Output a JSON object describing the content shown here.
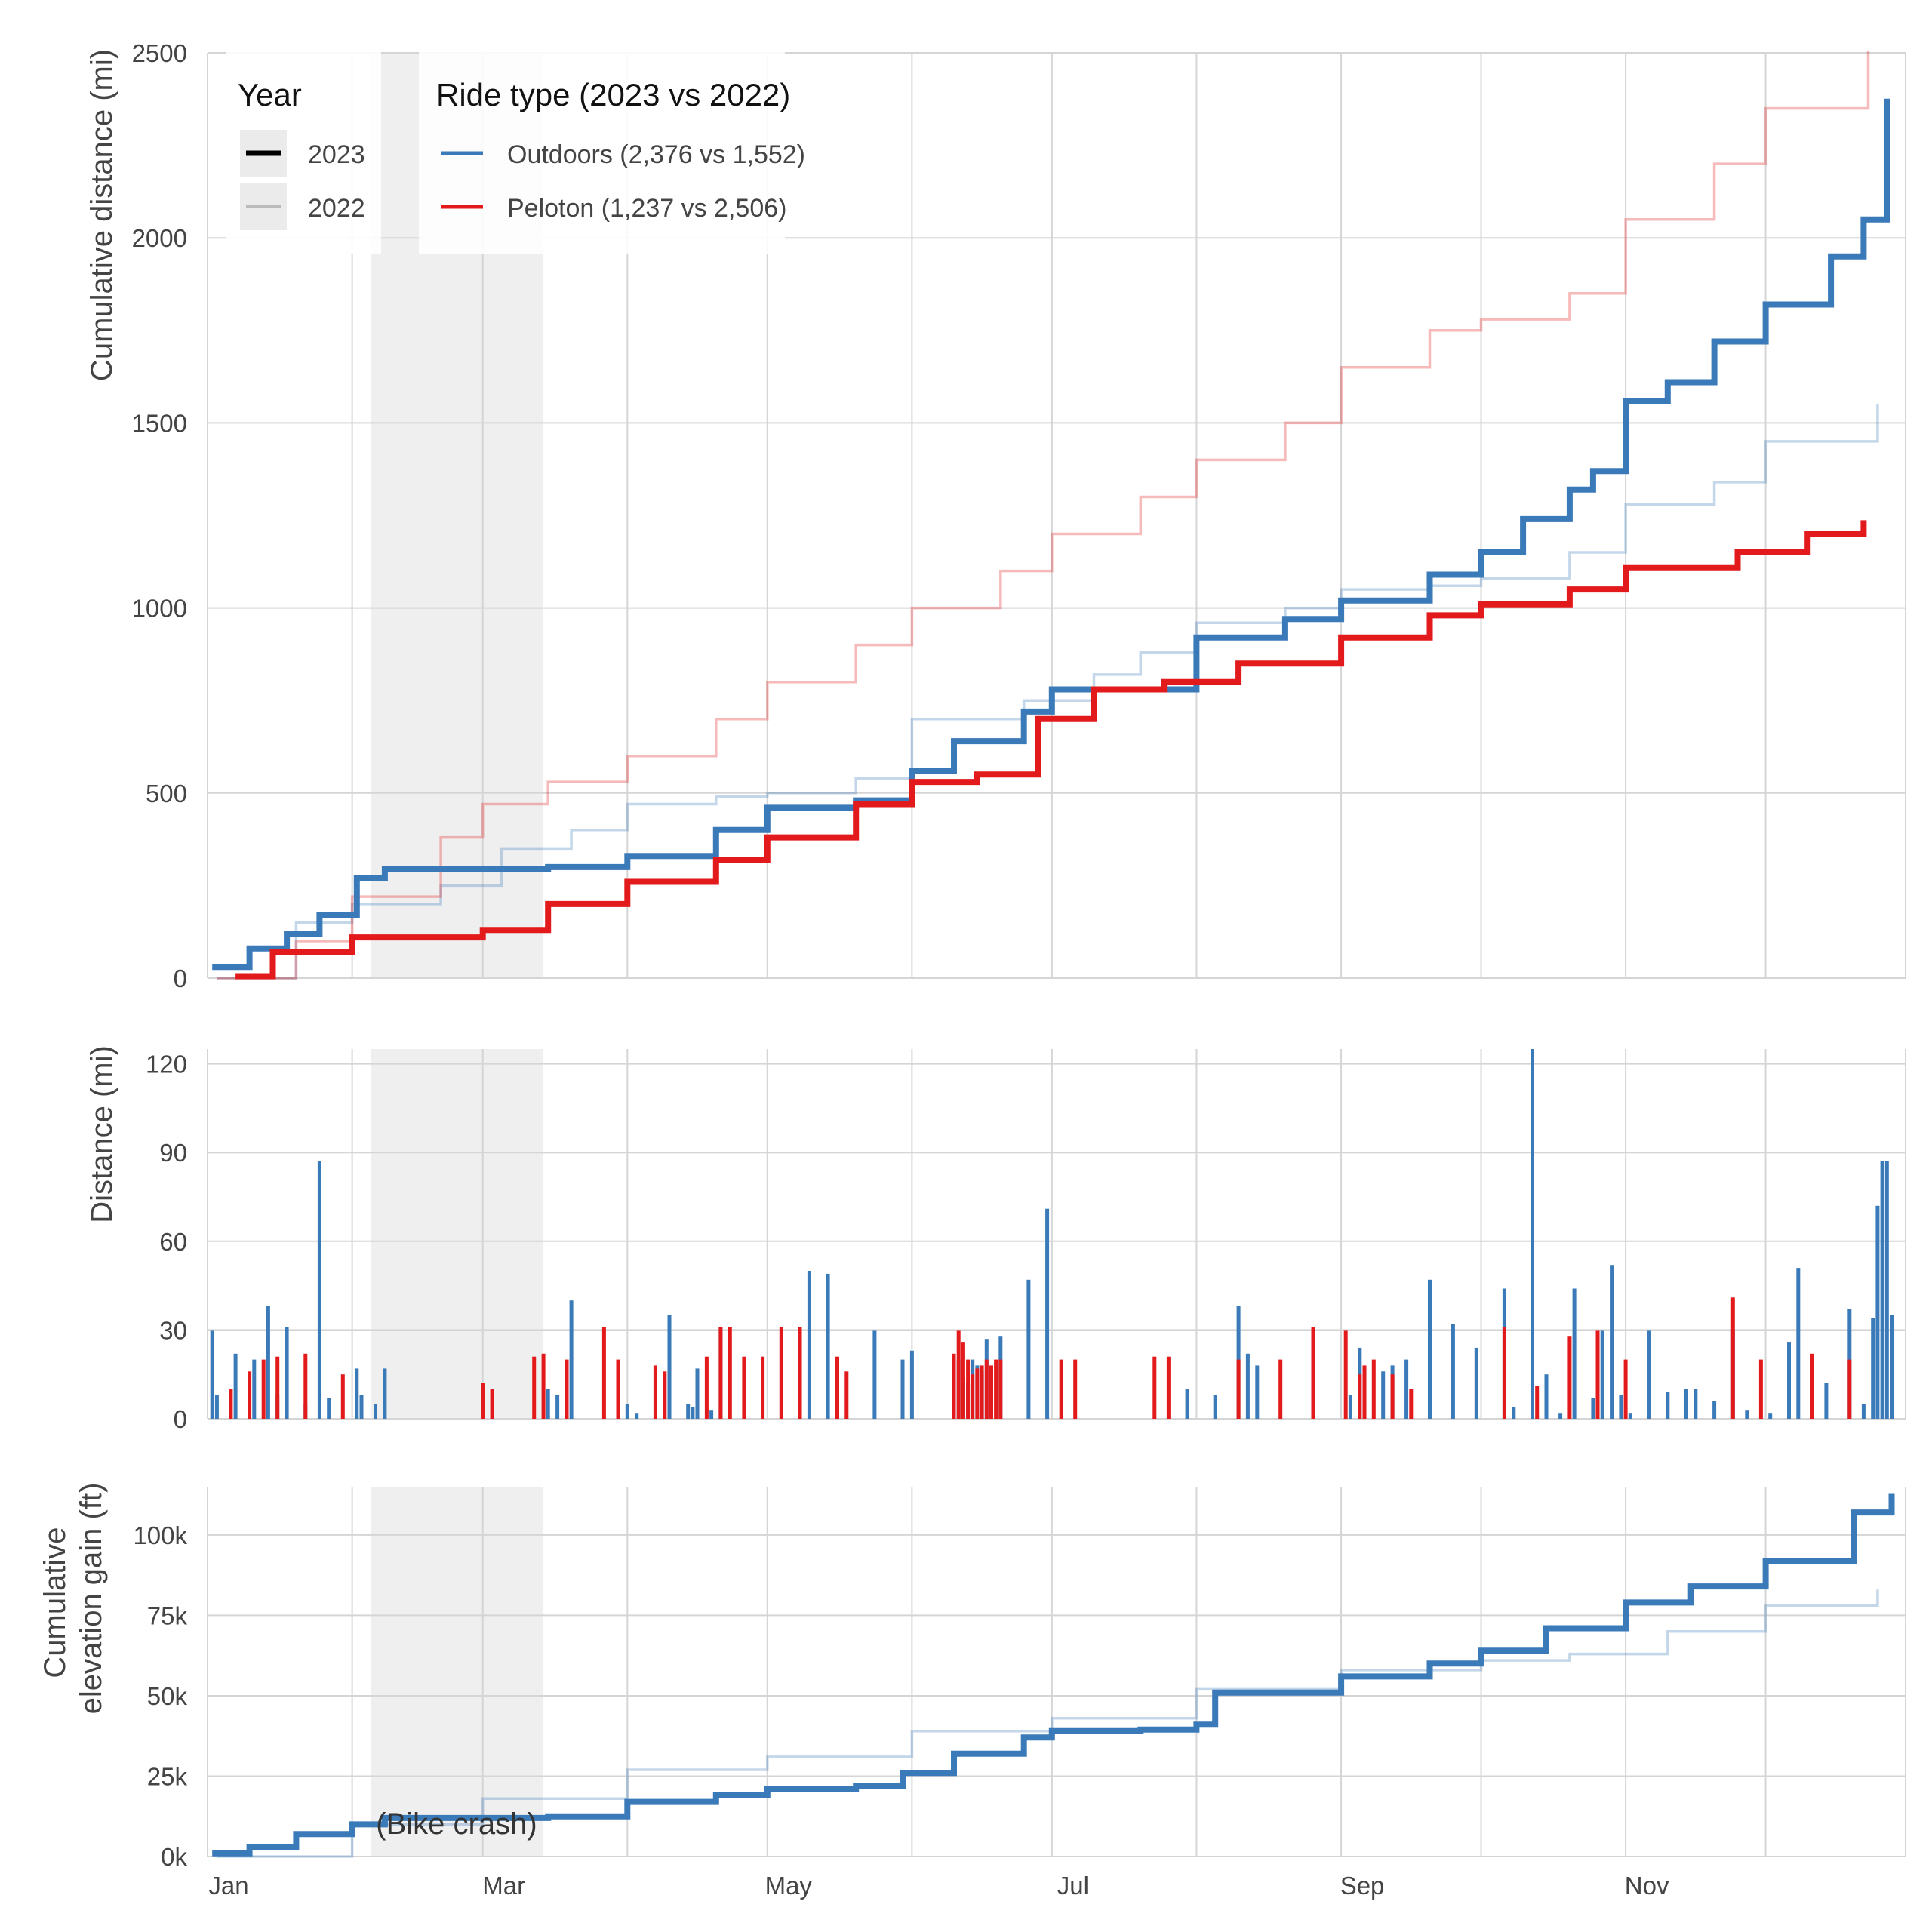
{
  "colors": {
    "outdoors": "#3a7ab8",
    "peloton": "#e31a1c",
    "grid": "#d5d5d5",
    "shade": "#efefef"
  },
  "legend": {
    "year_title": "Year",
    "year_items": [
      "2023",
      "2022"
    ],
    "type_title": "Ride type (2023 vs 2022)",
    "type_items": [
      "Outdoors (2,376 vs 1,552)",
      "Peloton (1,237 vs 2,506)"
    ]
  },
  "annotation": "(Bike crash)",
  "chart_data": [
    {
      "type": "line",
      "panel": "cumulative_distance",
      "ylabel": "Cumulative distance (mi)",
      "ylim": [
        0,
        2500
      ],
      "yticks": [
        0,
        500,
        1000,
        1500,
        2000,
        2500
      ],
      "x_ticks": [
        {
          "date": "2023-01-01",
          "label": "Jan"
        },
        {
          "date": "2023-03-01",
          "label": "Mar"
        },
        {
          "date": "2023-05-01",
          "label": "May"
        },
        {
          "date": "2023-07-01",
          "label": "Jul"
        },
        {
          "date": "2023-09-01",
          "label": "Sep"
        },
        {
          "date": "2023-11-01",
          "label": "Nov"
        }
      ],
      "shaded_range": [
        "2023-02-05",
        "2023-03-14"
      ],
      "series": [
        {
          "name": "Outdoors",
          "year": "2022",
          "x": [
            "2023-01-03",
            "2023-01-20",
            "2023-02-01",
            "2023-02-20",
            "2023-03-05",
            "2023-03-20",
            "2023-04-01",
            "2023-04-20",
            "2023-05-01",
            "2023-05-20",
            "2023-06-01",
            "2023-06-25",
            "2023-07-10",
            "2023-07-20",
            "2023-08-01",
            "2023-08-20",
            "2023-09-01",
            "2023-09-20",
            "2023-10-01",
            "2023-10-20",
            "2023-11-01",
            "2023-11-20",
            "2023-12-01",
            "2023-12-25"
          ],
          "values": [
            0,
            150,
            200,
            250,
            350,
            400,
            470,
            490,
            500,
            540,
            700,
            750,
            820,
            880,
            960,
            1000,
            1050,
            1060,
            1080,
            1150,
            1280,
            1340,
            1450,
            1552
          ]
        },
        {
          "name": "Peloton",
          "year": "2022",
          "x": [
            "2023-01-03",
            "2023-01-20",
            "2023-02-01",
            "2023-02-20",
            "2023-03-01",
            "2023-03-15",
            "2023-04-01",
            "2023-04-20",
            "2023-05-01",
            "2023-05-20",
            "2023-06-01",
            "2023-06-20",
            "2023-07-01",
            "2023-07-20",
            "2023-08-01",
            "2023-08-20",
            "2023-09-01",
            "2023-09-20",
            "2023-10-01",
            "2023-10-20",
            "2023-11-01",
            "2023-11-20",
            "2023-12-01",
            "2023-12-23"
          ],
          "values": [
            0,
            100,
            220,
            380,
            470,
            530,
            600,
            700,
            800,
            900,
            1000,
            1100,
            1200,
            1300,
            1400,
            1500,
            1650,
            1750,
            1780,
            1850,
            2050,
            2200,
            2350,
            2506
          ]
        },
        {
          "name": "Outdoors",
          "year": "2023",
          "x": [
            "2023-01-02",
            "2023-01-10",
            "2023-01-18",
            "2023-01-25",
            "2023-02-02",
            "2023-02-08",
            "2023-03-15",
            "2023-04-01",
            "2023-04-20",
            "2023-05-01",
            "2023-05-20",
            "2023-06-01",
            "2023-06-10",
            "2023-06-25",
            "2023-07-01",
            "2023-07-20",
            "2023-08-01",
            "2023-08-20",
            "2023-09-01",
            "2023-09-20",
            "2023-10-01",
            "2023-10-10",
            "2023-10-20",
            "2023-10-25",
            "2023-11-01",
            "2023-11-10",
            "2023-11-20",
            "2023-12-01",
            "2023-12-15",
            "2023-12-22",
            "2023-12-27"
          ],
          "values": [
            30,
            80,
            120,
            170,
            270,
            295,
            300,
            330,
            400,
            460,
            480,
            560,
            640,
            720,
            780,
            780,
            920,
            970,
            1020,
            1090,
            1150,
            1240,
            1320,
            1370,
            1560,
            1610,
            1720,
            1820,
            1950,
            2050,
            2376
          ]
        },
        {
          "name": "Peloton",
          "year": "2023",
          "x": [
            "2023-01-07",
            "2023-01-15",
            "2023-02-01",
            "2023-02-10",
            "2023-03-01",
            "2023-03-15",
            "2023-04-01",
            "2023-04-20",
            "2023-05-01",
            "2023-05-20",
            "2023-06-01",
            "2023-06-15",
            "2023-06-28",
            "2023-07-10",
            "2023-07-25",
            "2023-08-10",
            "2023-09-01",
            "2023-09-20",
            "2023-10-01",
            "2023-10-20",
            "2023-11-01",
            "2023-11-25",
            "2023-12-10",
            "2023-12-22"
          ],
          "values": [
            5,
            70,
            110,
            110,
            130,
            200,
            260,
            320,
            380,
            470,
            530,
            550,
            700,
            780,
            800,
            850,
            920,
            980,
            1010,
            1050,
            1110,
            1150,
            1200,
            1237
          ]
        }
      ]
    },
    {
      "type": "bar",
      "panel": "daily_distance",
      "ylabel": "Distance (mi)",
      "ylim": [
        0,
        125
      ],
      "yticks": [
        0,
        30,
        60,
        90,
        120
      ],
      "shaded_range": [
        "2023-02-05",
        "2023-03-14"
      ],
      "series": [
        {
          "name": "Outdoors",
          "x": [
            "2023-01-02",
            "2023-01-03",
            "2023-01-07",
            "2023-01-11",
            "2023-01-14",
            "2023-01-16",
            "2023-01-18",
            "2023-01-22",
            "2023-01-25",
            "2023-01-27",
            "2023-02-02",
            "2023-02-03",
            "2023-02-06",
            "2023-02-08",
            "2023-03-15",
            "2023-03-17",
            "2023-03-20",
            "2023-04-01",
            "2023-04-03",
            "2023-04-10",
            "2023-04-14",
            "2023-04-15",
            "2023-04-16",
            "2023-04-19",
            "2023-04-21",
            "2023-05-10",
            "2023-05-14",
            "2023-05-16",
            "2023-05-24",
            "2023-05-30",
            "2023-06-01",
            "2023-06-10",
            "2023-06-11",
            "2023-06-12",
            "2023-06-13",
            "2023-06-14",
            "2023-06-15",
            "2023-06-16",
            "2023-06-17",
            "2023-06-18",
            "2023-06-20",
            "2023-06-26",
            "2023-06-30",
            "2023-07-30",
            "2023-08-05",
            "2023-08-10",
            "2023-08-12",
            "2023-08-14",
            "2023-09-03",
            "2023-09-05",
            "2023-09-10",
            "2023-09-12",
            "2023-09-15",
            "2023-09-20",
            "2023-09-25",
            "2023-09-30",
            "2023-10-06",
            "2023-10-08",
            "2023-10-12",
            "2023-10-15",
            "2023-10-18",
            "2023-10-21",
            "2023-10-25",
            "2023-10-27",
            "2023-10-29",
            "2023-10-31",
            "2023-11-02",
            "2023-11-06",
            "2023-11-10",
            "2023-11-14",
            "2023-11-16",
            "2023-11-20",
            "2023-11-24",
            "2023-11-27",
            "2023-12-02",
            "2023-12-06",
            "2023-12-08",
            "2023-12-11",
            "2023-12-14",
            "2023-12-19",
            "2023-12-22",
            "2023-12-24",
            "2023-12-25",
            "2023-12-26",
            "2023-12-27",
            "2023-12-28"
          ],
          "values": [
            30,
            8,
            22,
            20,
            38,
            8,
            31,
            5,
            87,
            7,
            17,
            8,
            5,
            17,
            10,
            8,
            40,
            5,
            2,
            35,
            5,
            4,
            17,
            3,
            31,
            50,
            49,
            5,
            30,
            20,
            23,
            19,
            20,
            14,
            12,
            20,
            18,
            16,
            27,
            10,
            28,
            47,
            71,
            10,
            8,
            38,
            22,
            18,
            8,
            24,
            16,
            18,
            20,
            47,
            32,
            24,
            44,
            4,
            128,
            15,
            2,
            44,
            7,
            30,
            52,
            8,
            2,
            30,
            9,
            10,
            10,
            6,
            30,
            3,
            2,
            26,
            51,
            15,
            12,
            37,
            5,
            34,
            72,
            87,
            87,
            35
          ]
        },
        {
          "name": "Peloton",
          "x": [
            "2023-01-06",
            "2023-01-10",
            "2023-01-13",
            "2023-01-16",
            "2023-01-22",
            "2023-01-30",
            "2023-03-01",
            "2023-03-03",
            "2023-03-12",
            "2023-03-14",
            "2023-03-19",
            "2023-03-27",
            "2023-03-30",
            "2023-04-07",
            "2023-04-09",
            "2023-04-18",
            "2023-04-21",
            "2023-04-23",
            "2023-04-26",
            "2023-04-30",
            "2023-05-04",
            "2023-05-08",
            "2023-05-16",
            "2023-05-18",
            "2023-06-10",
            "2023-06-11",
            "2023-06-12",
            "2023-06-13",
            "2023-06-14",
            "2023-06-15",
            "2023-06-16",
            "2023-06-17",
            "2023-06-18",
            "2023-06-19",
            "2023-06-20",
            "2023-07-03",
            "2023-07-06",
            "2023-07-23",
            "2023-07-26",
            "2023-08-10",
            "2023-08-19",
            "2023-08-26",
            "2023-09-02",
            "2023-09-05",
            "2023-09-06",
            "2023-09-08",
            "2023-09-12",
            "2023-09-16",
            "2023-10-06",
            "2023-10-13",
            "2023-10-20",
            "2023-10-26",
            "2023-11-01",
            "2023-11-24",
            "2023-11-30",
            "2023-12-11",
            "2023-12-19"
          ],
          "values": [
            10,
            16,
            20,
            21,
            22,
            15,
            12,
            10,
            21,
            22,
            20,
            31,
            20,
            18,
            16,
            21,
            31,
            31,
            21,
            21,
            31,
            31,
            21,
            16,
            22,
            30,
            26,
            20,
            15,
            17,
            18,
            20,
            18,
            20,
            20,
            20,
            20,
            21,
            21,
            20,
            20,
            31,
            30,
            15,
            18,
            20,
            15,
            10,
            31,
            11,
            28,
            30,
            20,
            41,
            20,
            22,
            20
          ]
        }
      ]
    },
    {
      "type": "line",
      "panel": "cumulative_elevation",
      "ylabel": "Cumulative elevation gain (ft)",
      "ylim": [
        0,
        115000
      ],
      "yticks": [
        0,
        25000,
        50000,
        75000,
        100000
      ],
      "ytick_labels": [
        "0k",
        "25k",
        "50k",
        "75k",
        "100k"
      ],
      "shaded_range": [
        "2023-02-05",
        "2023-03-14"
      ],
      "series": [
        {
          "name": "Outdoors",
          "year": "2022",
          "x": [
            "2023-01-03",
            "2023-02-01",
            "2023-03-01",
            "2023-04-01",
            "2023-05-01",
            "2023-06-01",
            "2023-07-01",
            "2023-08-01",
            "2023-09-01",
            "2023-10-01",
            "2023-10-20",
            "2023-11-10",
            "2023-12-01",
            "2023-12-25"
          ],
          "values": [
            0,
            10000,
            18000,
            27000,
            31000,
            39000,
            43000,
            52000,
            58000,
            61000,
            63000,
            70000,
            78000,
            83000
          ]
        },
        {
          "name": "Outdoors",
          "year": "2023",
          "x": [
            "2023-01-02",
            "2023-01-10",
            "2023-01-20",
            "2023-02-01",
            "2023-02-08",
            "2023-03-15",
            "2023-04-01",
            "2023-04-20",
            "2023-05-01",
            "2023-05-20",
            "2023-05-30",
            "2023-06-10",
            "2023-06-25",
            "2023-07-01",
            "2023-07-20",
            "2023-08-01",
            "2023-08-05",
            "2023-09-01",
            "2023-09-20",
            "2023-10-01",
            "2023-10-15",
            "2023-11-01",
            "2023-11-15",
            "2023-12-01",
            "2023-12-20",
            "2023-12-28"
          ],
          "values": [
            1000,
            3000,
            7000,
            10000,
            12000,
            12500,
            17000,
            19000,
            21000,
            22000,
            26000,
            32000,
            37000,
            39000,
            39500,
            41000,
            51000,
            56000,
            60000,
            64000,
            71000,
            79000,
            84000,
            92000,
            107000,
            113000
          ]
        }
      ]
    }
  ]
}
